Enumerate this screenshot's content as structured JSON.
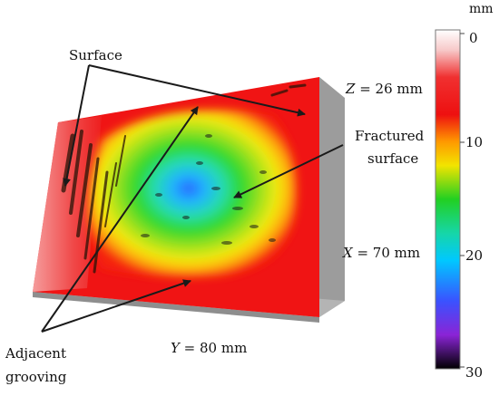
{
  "labels": {
    "surface": "Surface",
    "fractured_line1": "Fractured",
    "fractured_line2": "surface",
    "adjacent_line1": "Adjacent",
    "adjacent_line2": "grooving"
  },
  "dimensions": {
    "z": {
      "var": "Z",
      "value": " = 26 mm"
    },
    "x": {
      "var": "X",
      "value": " = 70 mm"
    },
    "y": {
      "var": "Y",
      "value": " = 80 mm"
    }
  },
  "colorbar": {
    "unit": "mm",
    "ticks": [
      "0",
      "10",
      "20",
      "30"
    ]
  },
  "colors": {
    "block_side": "#a9a9a9",
    "surface_base": "#f01414",
    "arrow": "#1a1a1a"
  }
}
